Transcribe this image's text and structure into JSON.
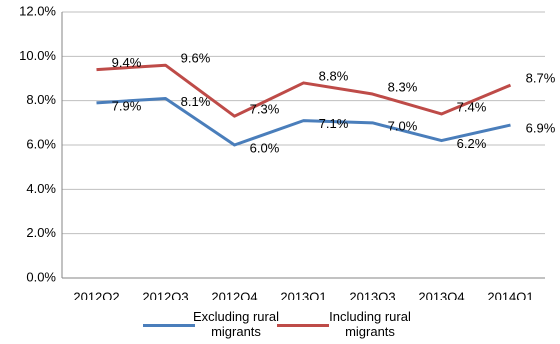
{
  "chart_data": {
    "type": "line",
    "categories": [
      "2012Q2",
      "2012Q3",
      "2012Q4",
      "2013Q1",
      "2013Q3",
      "2013Q4",
      "2014Q1"
    ],
    "series": [
      {
        "name": "Excluding rural migrants",
        "color": "#4a7ebb",
        "values": [
          7.9,
          8.1,
          6.0,
          7.1,
          7.0,
          6.2,
          6.9
        ],
        "value_labels": [
          "7.9%",
          "8.1%",
          "6.0%",
          "7.1%",
          "7.0%",
          "6.2%",
          "6.9%"
        ]
      },
      {
        "name": "Including rural migrants",
        "color": "#be4b48",
        "values": [
          9.4,
          9.6,
          7.3,
          8.8,
          8.3,
          7.4,
          8.7
        ],
        "value_labels": [
          "9.4%",
          "9.6%",
          "7.3%",
          "8.8%",
          "8.3%",
          "7.4%",
          "8.7%"
        ]
      }
    ],
    "ylim": [
      0,
      12
    ],
    "yticks": [
      {
        "value": 0,
        "label": "0.0%"
      },
      {
        "value": 2,
        "label": "2.0%"
      },
      {
        "value": 4,
        "label": "4.0%"
      },
      {
        "value": 6,
        "label": "6.0%"
      },
      {
        "value": 8,
        "label": "8.0%"
      },
      {
        "value": 10,
        "label": "10.0%"
      },
      {
        "value": 12,
        "label": "12.0%"
      }
    ],
    "grid": true
  }
}
